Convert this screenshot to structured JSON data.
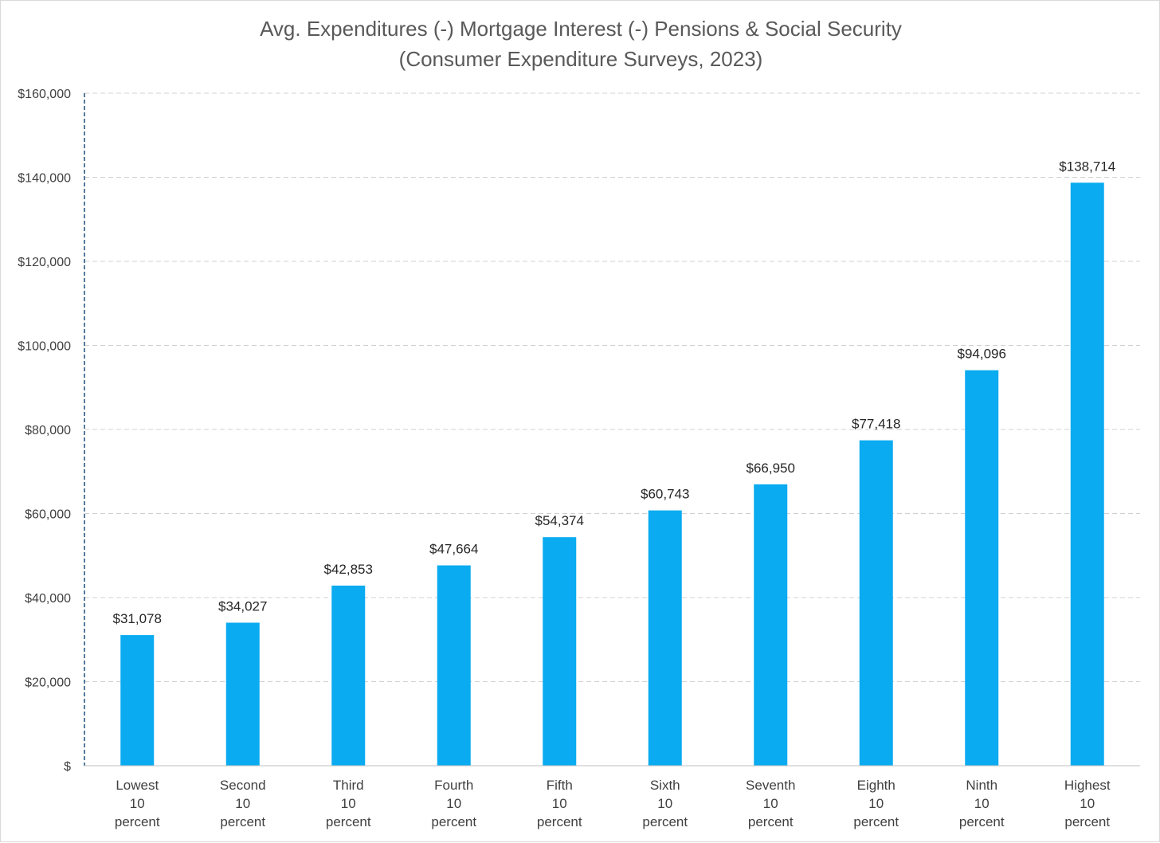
{
  "chart_data": {
    "type": "bar",
    "title": "Avg. Expenditures (-) Mortgage Interest (-) Pensions & Social Security",
    "subtitle": "(Consumer Expenditure Surveys, 2023)",
    "xlabel": "",
    "ylabel": "",
    "categories": [
      [
        "Lowest",
        "10",
        "percent"
      ],
      [
        "Second",
        "10",
        "percent"
      ],
      [
        "Third",
        "10",
        "percent"
      ],
      [
        "Fourth",
        "10",
        "percent"
      ],
      [
        "Fifth",
        "10",
        "percent"
      ],
      [
        "Sixth",
        "10",
        "percent"
      ],
      [
        "Seventh",
        "10",
        "percent"
      ],
      [
        "Eighth",
        "10",
        "percent"
      ],
      [
        "Ninth",
        "10",
        "percent"
      ],
      [
        "Highest",
        "10",
        "percent"
      ]
    ],
    "values": [
      31078,
      34027,
      42853,
      47664,
      54374,
      60743,
      66950,
      77418,
      94096,
      138714
    ],
    "data_labels": [
      "$31,078",
      "$34,027",
      "$42,853",
      "$47,664",
      "$54,374",
      "$60,743",
      "$66,950",
      "$77,418",
      "$94,096",
      "$138,714"
    ],
    "ylim": [
      0,
      160000
    ],
    "yticks": [
      0,
      20000,
      40000,
      60000,
      80000,
      100000,
      120000,
      140000,
      160000
    ],
    "ytick_labels": [
      "$",
      "$20,000",
      "$40,000",
      "$60,000",
      "$80,000",
      "$100,000",
      "$120,000",
      "$140,000",
      "$160,000"
    ],
    "grid": true,
    "legend": "none",
    "colors": {
      "bar": "#0aabf0",
      "gridline": "#d0d0d0",
      "y_axis_line": "#1f4e79",
      "x_axis_line": "#bfbfbf",
      "title": "#595959"
    }
  }
}
